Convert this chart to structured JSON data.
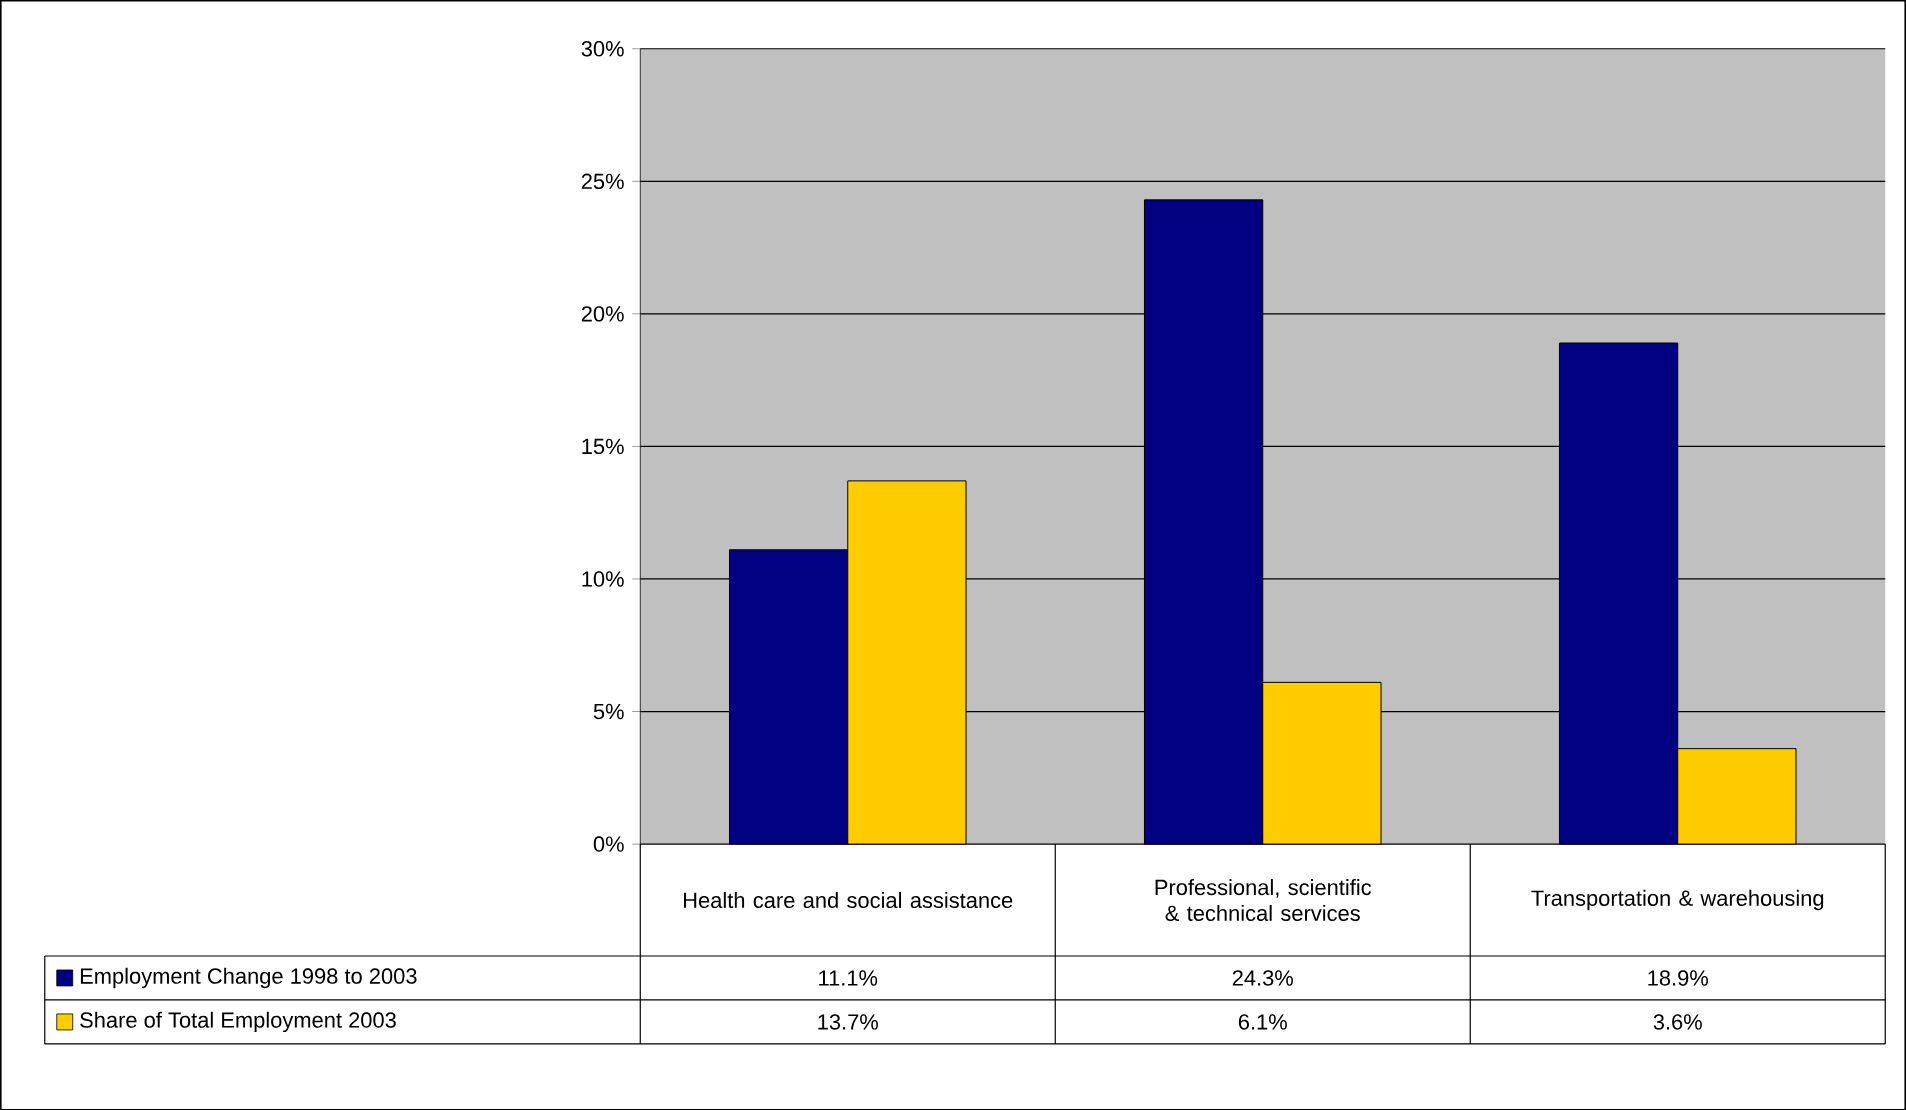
{
  "chart_data": {
    "type": "bar",
    "categories": [
      "Health care and social assistance",
      "Professional, scientific & technical services",
      "Transportation & warehousing"
    ],
    "series": [
      {
        "name": "Employment Change 1998 to 2003",
        "color": "#000080",
        "values": [
          11.1,
          24.3,
          18.9
        ],
        "value_labels": [
          "11.1%",
          "24.3%",
          "18.9%"
        ]
      },
      {
        "name": "Share of Total Employment 2003",
        "color": "#ffcc00",
        "values": [
          13.7,
          6.1,
          3.6
        ],
        "value_labels": [
          "13.7%",
          "6.1%",
          "3.6%"
        ]
      }
    ],
    "ylim": [
      0,
      30
    ],
    "yticks": [
      {
        "value": 0,
        "label": "0%"
      },
      {
        "value": 5,
        "label": "5%"
      },
      {
        "value": 10,
        "label": "10%"
      },
      {
        "value": 15,
        "label": "15%"
      },
      {
        "value": 20,
        "label": "20%"
      },
      {
        "value": 25,
        "label": "25%"
      },
      {
        "value": 30,
        "label": "30%"
      }
    ],
    "grid": "y",
    "legend": "bottom"
  }
}
